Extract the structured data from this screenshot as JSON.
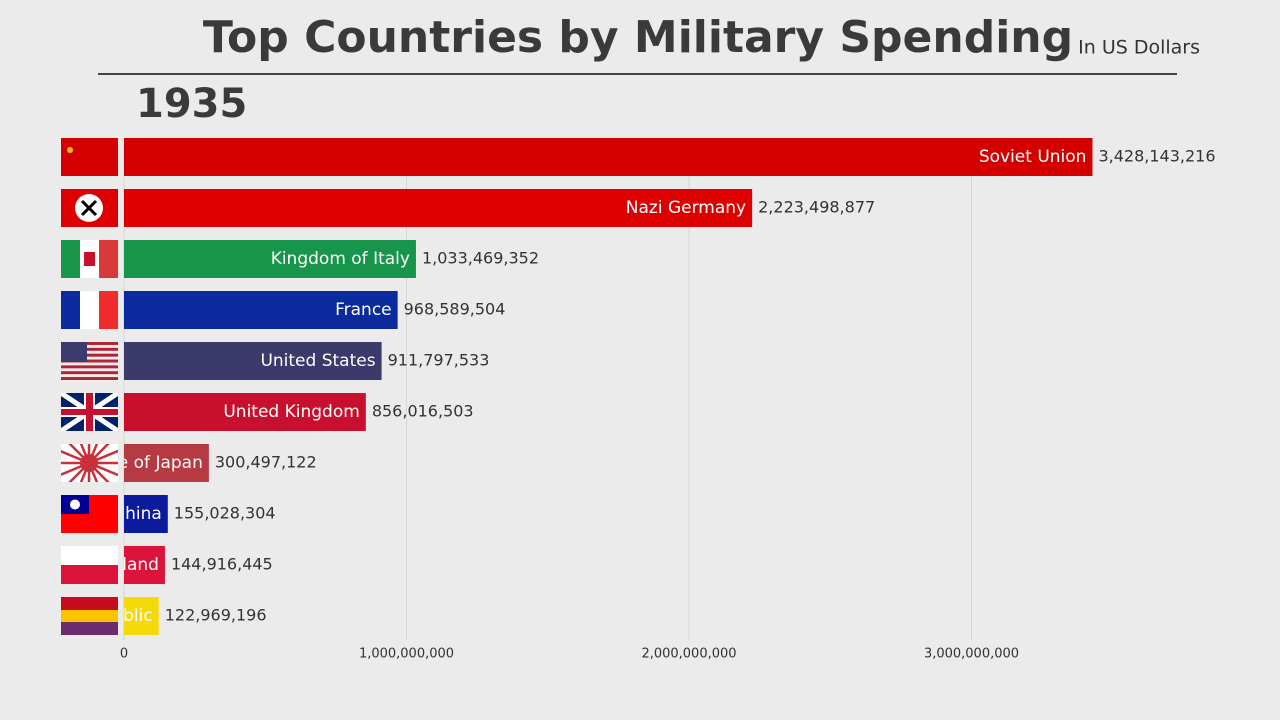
{
  "chart_data": {
    "type": "bar",
    "orientation": "horizontal",
    "title": "Top Countries by Military Spending",
    "subtitle": "In US Dollars",
    "year": "1935",
    "categories": [
      "Soviet Union",
      "Nazi Germany",
      "Kingdom of Italy",
      "France",
      "United States",
      "United Kingdom",
      "e of Japan",
      "hina",
      "land",
      "blic"
    ],
    "values": [
      3428143216,
      2223498877,
      1033469352,
      968589504,
      911797533,
      856016503,
      300497122,
      155028304,
      144916445,
      122969196
    ],
    "value_labels": [
      "3,428,143,216",
      "2,223,498,877",
      "1,033,469,352",
      "968,589,504",
      "911,797,533",
      "856,016,503",
      "300,497,122",
      "155,028,304",
      "144,916,445",
      "122,969,196"
    ],
    "colors": [
      "#d40000",
      "#dd0000",
      "#17954a",
      "#0b2a9e",
      "#3b3a6b",
      "#c8102e",
      "#b63a42",
      "#0c1a9c",
      "#dc143c",
      "#f6d90a"
    ],
    "xlim": [
      0,
      3600000000
    ],
    "xticks": [
      0,
      {
        "value": 1000000000,
        "label": "1,000,000,000"
      },
      {
        "value": 2000000000,
        "label": "2,000,000,000"
      },
      {
        "value": 3000000000,
        "label": "3,000,000,000"
      }
    ],
    "grid": true
  }
}
